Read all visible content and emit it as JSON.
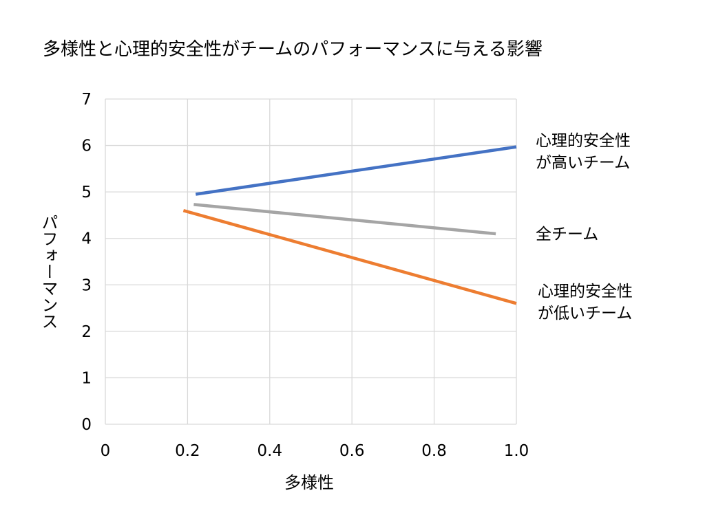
{
  "chart_data": {
    "type": "line",
    "title": "多様性と心理的安全性がチームのパフォーマンスに与える影響",
    "xlabel": "多様性",
    "ylabel": "パフォーマンス",
    "xlim": [
      0,
      1.0
    ],
    "ylim": [
      0,
      7
    ],
    "grid": true,
    "x_ticks": [
      "0",
      "0.2",
      "0.4",
      "0.6",
      "0.8",
      "1.0"
    ],
    "y_ticks": [
      "0",
      "1",
      "2",
      "3",
      "4",
      "5",
      "6",
      "7"
    ],
    "series": [
      {
        "name_lines": [
          "心理的安全性",
          "が高いチーム"
        ],
        "color": "#4472c4",
        "points": [
          [
            0.22,
            4.95
          ],
          [
            1.0,
            5.97
          ]
        ]
      },
      {
        "name_lines": [
          "全チーム"
        ],
        "color": "#a5a5a5",
        "points": [
          [
            0.215,
            4.73
          ],
          [
            0.95,
            4.1
          ]
        ]
      },
      {
        "name_lines": [
          "心理的安全性",
          "が低いチーム"
        ],
        "color": "#ed7d31",
        "points": [
          [
            0.19,
            4.6
          ],
          [
            1.0,
            2.6
          ]
        ]
      }
    ]
  }
}
